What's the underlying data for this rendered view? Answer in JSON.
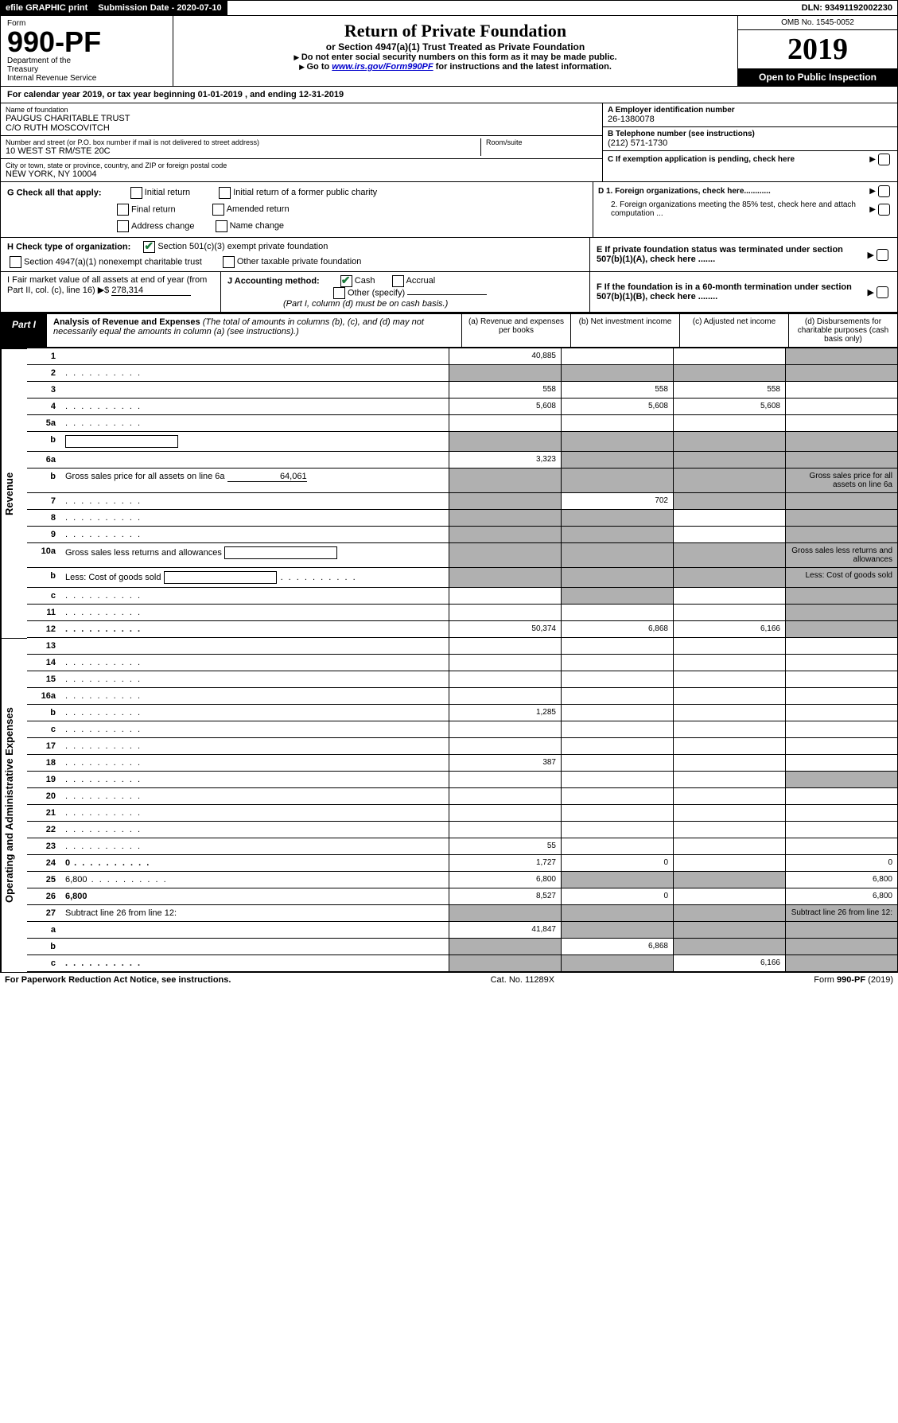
{
  "topbar": {
    "efile": "efile GRAPHIC print",
    "submission_label": "Submission Date - 2020-07-10",
    "dln_label": "DLN: 93491192002230"
  },
  "header": {
    "form_word": "Form",
    "form_number": "990-PF",
    "dept1": "Department of the",
    "dept2": "Treasury",
    "dept3": "Internal Revenue Service",
    "title": "Return of Private Foundation",
    "subtitle": "or Section 4947(a)(1) Trust Treated as Private Foundation",
    "note1": "Do not enter social security numbers on this form as it may be made public.",
    "note2_prefix": "Go to ",
    "note2_link": "www.irs.gov/Form990PF",
    "note2_suffix": " for instructions and the latest information.",
    "omb": "OMB No. 1545-0052",
    "year": "2019",
    "open_public": "Open to Public Inspection"
  },
  "cal_year": "For calendar year 2019, or tax year beginning 01-01-2019              , and ending 12-31-2019",
  "info": {
    "name_label": "Name of foundation",
    "name1": "PAUGUS CHARITABLE TRUST",
    "name2": "C/O RUTH MOSCOVITCH",
    "street_label": "Number and street (or P.O. box number if mail is not delivered to street address)",
    "room_label": "Room/suite",
    "street": "10 WEST ST RM/STE 20C",
    "city_label": "City or town, state or province, country, and ZIP or foreign postal code",
    "city": "NEW YORK, NY  10004",
    "a_label": "A Employer identification number",
    "a_val": "26-1380078",
    "b_label": "B Telephone number (see instructions)",
    "b_val": "(212) 571-1730",
    "c_label": "C If exemption application is pending, check here",
    "d1": "D 1. Foreign organizations, check here............",
    "d2": "2. Foreign organizations meeting the 85% test, check here and attach computation ...",
    "e_label": "E  If private foundation status was terminated under section 507(b)(1)(A), check here .......",
    "f_label": "F  If the foundation is in a 60-month termination under section 507(b)(1)(B), check here ........"
  },
  "g": {
    "label": "G Check all that apply:",
    "opts": [
      "Initial return",
      "Initial return of a former public charity",
      "Final return",
      "Amended return",
      "Address change",
      "Name change"
    ]
  },
  "h": {
    "label": "H Check type of organization:",
    "opt1": "Section 501(c)(3) exempt private foundation",
    "opt2": "Section 4947(a)(1) nonexempt charitable trust",
    "opt3": "Other taxable private foundation"
  },
  "i": {
    "label": "I Fair market value of all assets at end of year (from Part II, col. (c), line 16)",
    "val": "278,314"
  },
  "j": {
    "label": "J Accounting method:",
    "cash": "Cash",
    "accrual": "Accrual",
    "other": "Other (specify)",
    "note": "(Part I, column (d) must be on cash basis.)"
  },
  "part1": {
    "label": "Part I",
    "title": "Analysis of Revenue and Expenses",
    "desc": " (The total of amounts in columns (b), (c), and (d) may not necessarily equal the amounts in column (a) (see instructions).)",
    "col_a": "(a)   Revenue and expenses per books",
    "col_b": "(b)  Net investment income",
    "col_c": "(c)  Adjusted net income",
    "col_d": "(d)  Disbursements for charitable purposes (cash basis only)"
  },
  "vlabels": {
    "revenue": "Revenue",
    "expenses": "Operating and Administrative Expenses"
  },
  "rows": [
    {
      "n": "1",
      "d": "",
      "a": "40,885",
      "b": "",
      "c": "",
      "shade_d": true
    },
    {
      "n": "2",
      "d": "",
      "a": "",
      "b": "",
      "c": "",
      "shade_all": true,
      "checked": true,
      "dots": true
    },
    {
      "n": "3",
      "d": "",
      "a": "558",
      "b": "558",
      "c": "558"
    },
    {
      "n": "4",
      "d": "",
      "a": "5,608",
      "b": "5,608",
      "c": "5,608",
      "dots": true
    },
    {
      "n": "5a",
      "d": "",
      "a": "",
      "b": "",
      "c": "",
      "dots": true
    },
    {
      "n": "b",
      "d": "",
      "a": "",
      "b": "",
      "c": "",
      "shade_all": true,
      "inline_box": true
    },
    {
      "n": "6a",
      "d": "",
      "a": "3,323",
      "b": "",
      "c": "",
      "shade_bcd": true
    },
    {
      "n": "b",
      "d": "Gross sales price for all assets on line 6a",
      "inline_val": "64,061",
      "shade_all": true
    },
    {
      "n": "7",
      "d": "",
      "a": "",
      "b": "702",
      "c": "",
      "shade_a": true,
      "shade_cd": true,
      "dots": true
    },
    {
      "n": "8",
      "d": "",
      "a": "",
      "b": "",
      "c": "",
      "shade_ab": true,
      "shade_d": true,
      "dots": true
    },
    {
      "n": "9",
      "d": "",
      "a": "",
      "b": "",
      "c": "",
      "shade_ab": true,
      "shade_d": true,
      "dots": true
    },
    {
      "n": "10a",
      "d": "Gross sales less returns and allowances",
      "shade_all": true,
      "inline_box": true
    },
    {
      "n": "b",
      "d": "Less: Cost of goods sold",
      "shade_all": true,
      "inline_box": true,
      "dots": true
    },
    {
      "n": "c",
      "d": "",
      "a": "",
      "b": "",
      "c": "",
      "shade_b": true,
      "shade_d": true,
      "dots": true
    },
    {
      "n": "11",
      "d": "",
      "a": "",
      "b": "",
      "c": "",
      "shade_d": true,
      "dots": true
    },
    {
      "n": "12",
      "d": "",
      "a": "50,374",
      "b": "6,868",
      "c": "6,166",
      "bold": true,
      "shade_d": true,
      "dots": true
    }
  ],
  "exp_rows": [
    {
      "n": "13",
      "d": "",
      "a": "",
      "b": "",
      "c": ""
    },
    {
      "n": "14",
      "d": "",
      "a": "",
      "b": "",
      "c": "",
      "dots": true
    },
    {
      "n": "15",
      "d": "",
      "a": "",
      "b": "",
      "c": "",
      "dots": true
    },
    {
      "n": "16a",
      "d": "",
      "a": "",
      "b": "",
      "c": "",
      "dots": true
    },
    {
      "n": "b",
      "d": "",
      "a": "1,285",
      "b": "",
      "c": "",
      "dots": true
    },
    {
      "n": "c",
      "d": "",
      "a": "",
      "b": "",
      "c": "",
      "dots": true
    },
    {
      "n": "17",
      "d": "",
      "a": "",
      "b": "",
      "c": "",
      "dots": true
    },
    {
      "n": "18",
      "d": "",
      "a": "387",
      "b": "",
      "c": "",
      "dots": true
    },
    {
      "n": "19",
      "d": "",
      "a": "",
      "b": "",
      "c": "",
      "shade_d": true,
      "dots": true
    },
    {
      "n": "20",
      "d": "",
      "a": "",
      "b": "",
      "c": "",
      "dots": true
    },
    {
      "n": "21",
      "d": "",
      "a": "",
      "b": "",
      "c": "",
      "dots": true
    },
    {
      "n": "22",
      "d": "",
      "a": "",
      "b": "",
      "c": "",
      "dots": true
    },
    {
      "n": "23",
      "d": "",
      "a": "55",
      "b": "",
      "c": "",
      "dots": true
    },
    {
      "n": "24",
      "d": "0",
      "a": "1,727",
      "b": "0",
      "c": "",
      "bold": true,
      "dots": true
    },
    {
      "n": "25",
      "d": "6,800",
      "a": "6,800",
      "b": "",
      "c": "",
      "shade_bc": true,
      "dots": true
    },
    {
      "n": "26",
      "d": "6,800",
      "a": "8,527",
      "b": "0",
      "c": "",
      "bold": true
    },
    {
      "n": "27",
      "d": "Subtract line 26 from line 12:",
      "shade_all": true
    },
    {
      "n": "a",
      "d": "",
      "a": "41,847",
      "b": "",
      "c": "",
      "bold": true,
      "shade_bcd": true
    },
    {
      "n": "b",
      "d": "",
      "a": "",
      "b": "6,868",
      "c": "",
      "bold": true,
      "shade_a": true,
      "shade_cd": true
    },
    {
      "n": "c",
      "d": "",
      "a": "",
      "b": "",
      "c": "6,166",
      "bold": true,
      "shade_ab": true,
      "shade_d": true,
      "dots": true
    }
  ],
  "footer": {
    "left": "For Paperwork Reduction Act Notice, see instructions.",
    "center": "Cat. No. 11289X",
    "right": "Form 990-PF (2019)"
  }
}
